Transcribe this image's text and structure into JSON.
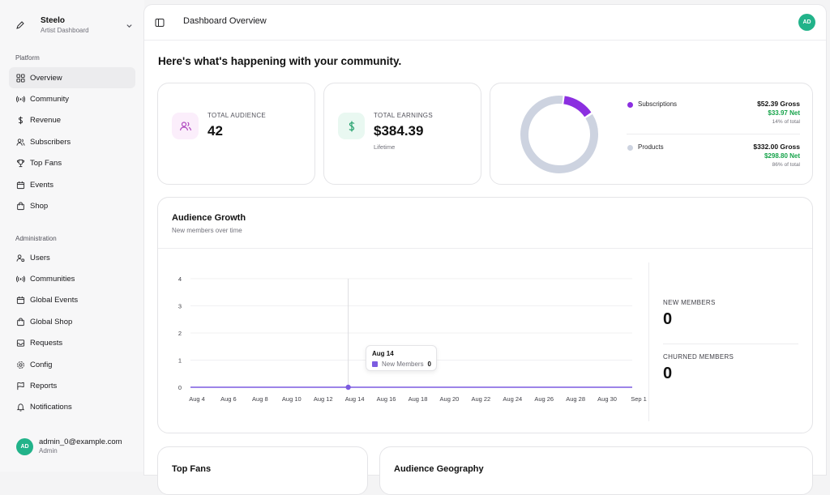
{
  "sidebar": {
    "brand": {
      "name": "Steelo",
      "subtitle": "Artist Dashboard"
    },
    "platform_label": "Platform",
    "platform_items": [
      {
        "label": "Overview",
        "icon": "grid-icon",
        "active": true
      },
      {
        "label": "Community",
        "icon": "broadcast-icon"
      },
      {
        "label": "Revenue",
        "icon": "dollar-icon"
      },
      {
        "label": "Subscribers",
        "icon": "users-icon"
      },
      {
        "label": "Top Fans",
        "icon": "trophy-icon"
      },
      {
        "label": "Events",
        "icon": "calendar-icon"
      },
      {
        "label": "Shop",
        "icon": "shopping-bag-icon"
      }
    ],
    "admin_label": "Administration",
    "admin_items": [
      {
        "label": "Users",
        "icon": "user-cog-icon"
      },
      {
        "label": "Communities",
        "icon": "broadcast-icon"
      },
      {
        "label": "Global Events",
        "icon": "calendar-icon"
      },
      {
        "label": "Global Shop",
        "icon": "shopping-bag-icon"
      },
      {
        "label": "Requests",
        "icon": "inbox-icon"
      },
      {
        "label": "Config",
        "icon": "gear-icon"
      },
      {
        "label": "Reports",
        "icon": "flag-icon"
      },
      {
        "label": "Notifications",
        "icon": "bell-icon"
      }
    ],
    "user": {
      "initials": "AD",
      "email": "admin_0@example.com",
      "role": "Admin"
    }
  },
  "header": {
    "title": "Dashboard Overview",
    "avatar_initials": "AD"
  },
  "greeting": "Here's what's happening with your community.",
  "stats": {
    "audience": {
      "label": "TOTAL AUDIENCE",
      "value": "42"
    },
    "earnings": {
      "label": "TOTAL EARNINGS",
      "value": "$384.39",
      "sub": "Lifetime"
    }
  },
  "breakdown": {
    "items": [
      {
        "name": "Subscriptions",
        "gross": "$52.39 Gross",
        "net": "$33.97 Net",
        "pct_label": "14% of total",
        "share": 0.14,
        "color": "#8b2fe0"
      },
      {
        "name": "Products",
        "gross": "$332.00 Gross",
        "net": "$298.80 Net",
        "pct_label": "86% of total",
        "share": 0.86,
        "color": "#cdd3e0"
      }
    ]
  },
  "growth": {
    "title": "Audience Growth",
    "subtitle": "New members over time",
    "new_members_label": "NEW MEMBERS",
    "new_members_value": "0",
    "churned_label": "CHURNED MEMBERS",
    "churned_value": "0",
    "tooltip": {
      "date": "Aug 14",
      "series": "New Members",
      "value": "0"
    }
  },
  "chart_data": {
    "type": "line",
    "x": [
      "Aug 4",
      "Aug 6",
      "Aug 8",
      "Aug 10",
      "Aug 12",
      "Aug 14",
      "Aug 16",
      "Aug 18",
      "Aug 20",
      "Aug 22",
      "Aug 24",
      "Aug 26",
      "Aug 28",
      "Aug 30",
      "Sep 1"
    ],
    "series": [
      {
        "name": "New Members",
        "values": [
          0,
          0,
          0,
          0,
          0,
          0,
          0,
          0,
          0,
          0,
          0,
          0,
          0,
          0,
          0
        ],
        "color": "#7c5ce0"
      }
    ],
    "yticks": [
      0,
      1,
      2,
      3,
      4
    ],
    "ylim": [
      0,
      4
    ],
    "highlight_index": 5,
    "grid": true
  },
  "bottom": {
    "top_fans_title": "Top Fans",
    "geography_title": "Audience Geography"
  }
}
